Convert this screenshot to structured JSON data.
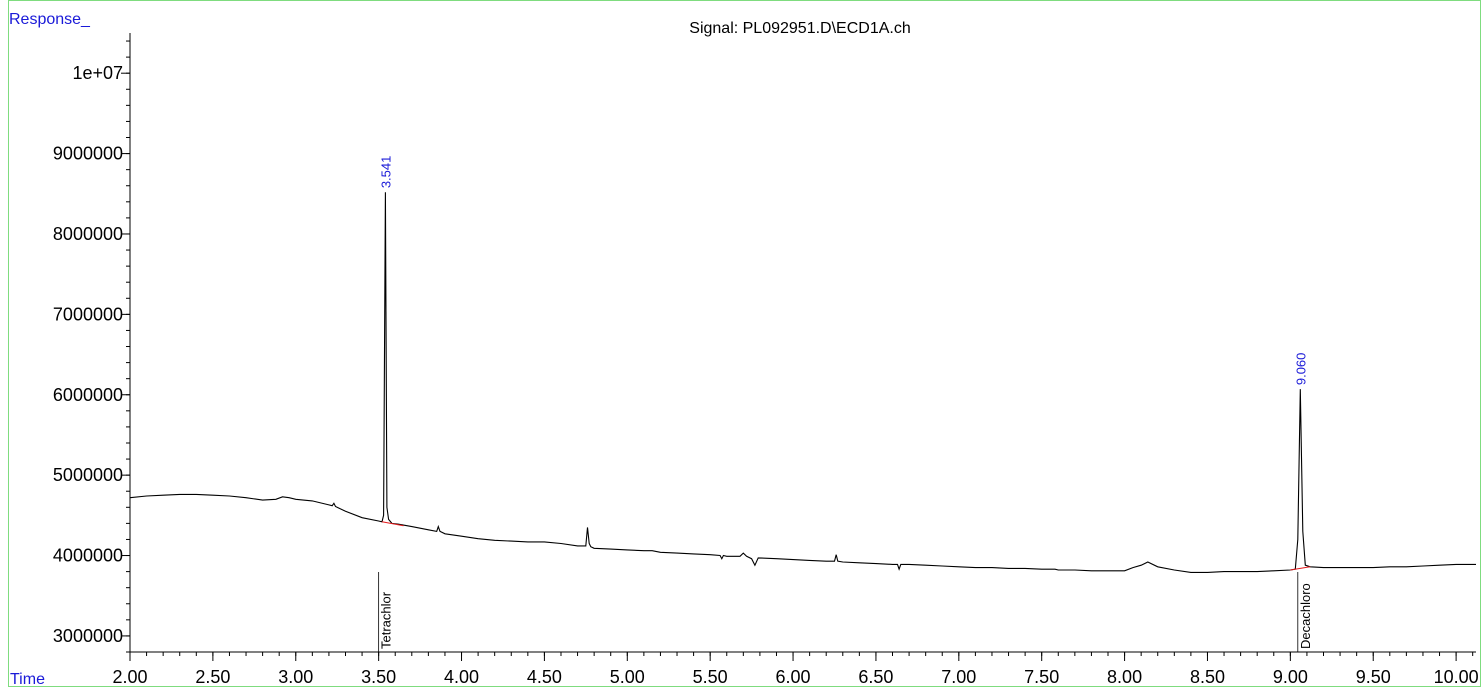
{
  "chart_data": {
    "type": "line",
    "title": "Signal: PL092951.D\\ECD1A.ch",
    "ylabel": "Response_",
    "xlabel": "Time",
    "xlim": [
      2.0,
      10.12
    ],
    "ylim": [
      2800000,
      10500000
    ],
    "x_ticks": [
      2.0,
      2.5,
      3.0,
      3.5,
      4.0,
      4.5,
      5.0,
      5.5,
      6.0,
      6.5,
      7.0,
      7.5,
      8.0,
      8.5,
      9.0,
      9.5,
      10.0
    ],
    "x_tick_labels": [
      "2.00",
      "2.50",
      "3.00",
      "3.50",
      "4.00",
      "4.50",
      "5.00",
      "5.50",
      "6.00",
      "6.50",
      "7.00",
      "7.50",
      "8.00",
      "8.50",
      "9.00",
      "9.50",
      "10.00"
    ],
    "y_ticks": [
      3000000,
      4000000,
      5000000,
      6000000,
      7000000,
      8000000,
      9000000,
      10000000
    ],
    "y_tick_labels": [
      "3000000",
      "4000000",
      "5000000",
      "6000000",
      "7000000",
      "8000000",
      "9000000",
      "1e+07"
    ],
    "grid": false,
    "series": [
      {
        "color": "#000000",
        "x": [
          2.0,
          2.1,
          2.2,
          2.3,
          2.4,
          2.5,
          2.6,
          2.7,
          2.8,
          2.88,
          2.92,
          2.96,
          3.0,
          3.1,
          3.2,
          3.22,
          3.23,
          3.24,
          3.3,
          3.4,
          3.5,
          3.52,
          3.53,
          3.541,
          3.55,
          3.56,
          3.58,
          3.62,
          3.7,
          3.8,
          3.85,
          3.86,
          3.87,
          3.9,
          4.0,
          4.1,
          4.2,
          4.3,
          4.4,
          4.5,
          4.6,
          4.7,
          4.75,
          4.76,
          4.77,
          4.78,
          4.8,
          4.9,
          5.0,
          5.1,
          5.15,
          5.2,
          5.3,
          5.4,
          5.5,
          5.56,
          5.57,
          5.58,
          5.6,
          5.68,
          5.7,
          5.72,
          5.75,
          5.77,
          5.79,
          5.9,
          6.0,
          6.1,
          6.2,
          6.25,
          6.26,
          6.27,
          6.3,
          6.4,
          6.5,
          6.6,
          6.63,
          6.64,
          6.65,
          6.7,
          6.8,
          6.9,
          7.0,
          7.1,
          7.2,
          7.3,
          7.4,
          7.5,
          7.58,
          7.6,
          7.7,
          7.8,
          7.9,
          8.0,
          8.05,
          8.1,
          8.14,
          8.2,
          8.3,
          8.4,
          8.5,
          8.6,
          8.7,
          8.8,
          8.9,
          9.0,
          9.03,
          9.045,
          9.06,
          9.075,
          9.09,
          9.12,
          9.2,
          9.3,
          9.4,
          9.5,
          9.6,
          9.7,
          9.8,
          9.9,
          10.0,
          10.1,
          10.12
        ],
        "y": [
          4720000,
          4740000,
          4750000,
          4760000,
          4760000,
          4750000,
          4740000,
          4720000,
          4690000,
          4700000,
          4730000,
          4720000,
          4700000,
          4680000,
          4630000,
          4620000,
          4650000,
          4610000,
          4550000,
          4470000,
          4430000,
          4420000,
          4500000,
          8520000,
          4600000,
          4450000,
          4400000,
          4390000,
          4360000,
          4320000,
          4300000,
          4360000,
          4300000,
          4270000,
          4240000,
          4210000,
          4190000,
          4180000,
          4170000,
          4170000,
          4150000,
          4120000,
          4120000,
          4350000,
          4150000,
          4110000,
          4090000,
          4080000,
          4070000,
          4060000,
          4060000,
          4040000,
          4030000,
          4020000,
          4010000,
          4000000,
          3960000,
          4000000,
          3990000,
          3990000,
          4030000,
          3990000,
          3960000,
          3880000,
          3970000,
          3960000,
          3950000,
          3940000,
          3930000,
          3930000,
          4010000,
          3930000,
          3920000,
          3910000,
          3900000,
          3890000,
          3890000,
          3830000,
          3890000,
          3890000,
          3880000,
          3870000,
          3860000,
          3850000,
          3850000,
          3840000,
          3840000,
          3830000,
          3830000,
          3820000,
          3820000,
          3810000,
          3810000,
          3810000,
          3850000,
          3880000,
          3920000,
          3860000,
          3820000,
          3790000,
          3790000,
          3800000,
          3800000,
          3800000,
          3810000,
          3820000,
          3830000,
          4200000,
          6070000,
          4300000,
          3880000,
          3860000,
          3850000,
          3850000,
          3850000,
          3850000,
          3860000,
          3860000,
          3870000,
          3880000,
          3890000,
          3890000,
          3890000
        ]
      }
    ],
    "baselines": [
      {
        "x": [
          3.52,
          3.65
        ],
        "y": [
          4420000,
          4370000
        ],
        "color": "#e31a1c"
      },
      {
        "x": [
          9.0,
          9.12
        ],
        "y": [
          3820000,
          3860000
        ],
        "color": "#e31a1c"
      }
    ],
    "peak_labels": [
      {
        "x": 3.541,
        "y": 8520000,
        "text": "3.541",
        "color": "#1a1ad8"
      },
      {
        "x": 9.06,
        "y": 6070000,
        "text": "9.060",
        "color": "#1a1ad8"
      }
    ],
    "compound_labels": [
      {
        "x": 3.5,
        "text": "Tetrachlor",
        "color": "#000000"
      },
      {
        "x": 9.045,
        "text": "Decachloro",
        "color": "#000000"
      }
    ],
    "frame_color": "#7fdc7f",
    "axis_label_color": "#1a1ad8"
  }
}
